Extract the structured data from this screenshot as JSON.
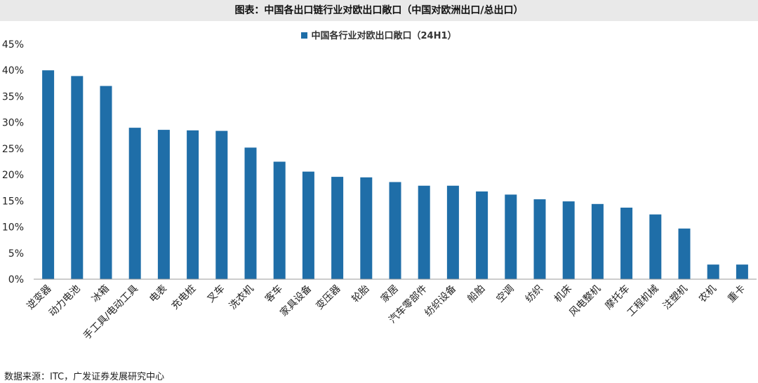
{
  "page": {
    "title": "图表：中国各出口链行业对欧出口敞口（中国对欧洲出口/总出口）",
    "source": "数据来源：ITC，广发证券发展研究中心"
  },
  "colors": {
    "bar": "#1f6ea8",
    "axis": "#9a9a9a",
    "title_bg": "#e9e9e9"
  },
  "chart_data": {
    "type": "bar",
    "title": "图表：中国各出口链行业对欧出口敞口（中国对欧洲出口/总出口）",
    "xlabel": "",
    "ylabel": "",
    "ylim": [
      0,
      45
    ],
    "y_ticks": [
      0,
      5,
      10,
      15,
      20,
      25,
      30,
      35,
      40,
      45
    ],
    "y_tick_format": "percent",
    "grid": false,
    "legend_position": "top-center",
    "categories": [
      "逆变器",
      "动力电池",
      "冰箱",
      "手工具/电动工具",
      "电表",
      "充电桩",
      "叉车",
      "洗衣机",
      "客车",
      "家具设备",
      "变压器",
      "轮胎",
      "家居",
      "汽车零部件",
      "纺织设备",
      "船舶",
      "空调",
      "纺织",
      "机床",
      "风电整机",
      "摩托车",
      "工程机械",
      "注塑机",
      "农机",
      "重卡"
    ],
    "series": [
      {
        "name": "中国各行业对欧出口敞口（24H1）",
        "values": [
          40.0,
          38.9,
          37.0,
          29.0,
          28.6,
          28.5,
          28.4,
          25.2,
          22.5,
          20.6,
          19.6,
          19.5,
          18.6,
          17.9,
          17.9,
          16.8,
          16.2,
          15.3,
          14.9,
          14.4,
          13.7,
          12.4,
          9.7,
          2.8,
          2.8
        ]
      }
    ]
  }
}
